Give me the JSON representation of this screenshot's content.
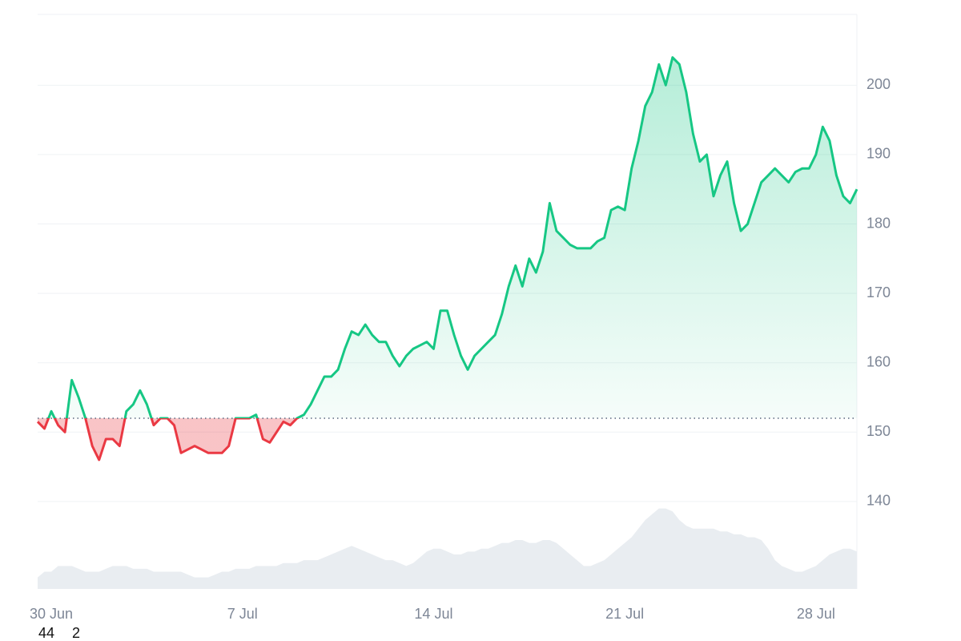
{
  "chart_data": {
    "type": "line",
    "categories": [
      null,
      null,
      "30 Jun",
      null,
      null,
      null,
      null,
      null,
      null,
      null,
      null,
      null,
      null,
      null,
      null,
      null,
      null,
      null,
      null,
      null,
      null,
      null,
      null,
      null,
      null,
      null,
      null,
      null,
      null,
      null,
      "7 Jul",
      null,
      null,
      null,
      null,
      null,
      null,
      null,
      null,
      null,
      null,
      null,
      null,
      null,
      null,
      null,
      null,
      null,
      null,
      null,
      null,
      null,
      null,
      null,
      null,
      null,
      null,
      null,
      "14 Jul",
      null,
      null,
      null,
      null,
      null,
      null,
      null,
      null,
      null,
      null,
      null,
      null,
      null,
      null,
      null,
      null,
      null,
      null,
      null,
      null,
      null,
      null,
      null,
      null,
      null,
      null,
      null,
      "21 Jul",
      null,
      null,
      null,
      null,
      null,
      null,
      null,
      null,
      null,
      null,
      null,
      null,
      null,
      null,
      null,
      null,
      null,
      null,
      null,
      null,
      null,
      null,
      null,
      null,
      null,
      null,
      null,
      "28 Jul",
      null,
      null,
      null,
      null,
      null,
      null
    ],
    "series": [
      {
        "color": "#16c784",
        "down_color": "#ea3943",
        "values": [
          151.5,
          150.5,
          153,
          151,
          150,
          157.5,
          155,
          152,
          148,
          146,
          149,
          149,
          148,
          153,
          154,
          156,
          154,
          151,
          152,
          152,
          151,
          147,
          147.5,
          148,
          147.5,
          147,
          147,
          147,
          148,
          152,
          152,
          152,
          152.5,
          149,
          148.5,
          150,
          151.5,
          151,
          152,
          152.5,
          154,
          156,
          158,
          158,
          159,
          162,
          164.5,
          164,
          165.5,
          164,
          163,
          163,
          161,
          159.5,
          161,
          162,
          162.5,
          163,
          162,
          167.5,
          167.5,
          164,
          161,
          159,
          161,
          162,
          163,
          164,
          167,
          171,
          174,
          171,
          175,
          173,
          176,
          183,
          179,
          178,
          177,
          176.5,
          176.5,
          176.5,
          177.5,
          178,
          182,
          182.5,
          182,
          188,
          192,
          197,
          199,
          203,
          200,
          204,
          203,
          199,
          193,
          189,
          190,
          184,
          187,
          189,
          183,
          179,
          180,
          183,
          186,
          187,
          188,
          187,
          186,
          187.5,
          188,
          188,
          190,
          194,
          192,
          187,
          184,
          183,
          185
        ]
      },
      {
        "type": "area",
        "axis": "y2",
        "color": "#e9edf1",
        "values": [
          2,
          3,
          3,
          4,
          4,
          4,
          3.5,
          3,
          3,
          3,
          3.5,
          4,
          4,
          4,
          3.5,
          3.5,
          3.5,
          3,
          3,
          3,
          3,
          3,
          2.5,
          2,
          2,
          2,
          2.5,
          3,
          3,
          3.5,
          3.5,
          3.5,
          4,
          4,
          4,
          4,
          4.5,
          4.5,
          4.5,
          5,
          5,
          5,
          5.5,
          6,
          6.5,
          7,
          7.5,
          7,
          6.5,
          6,
          5.5,
          5,
          5,
          4.5,
          4,
          4.5,
          5.5,
          6.5,
          7,
          7,
          6.5,
          6,
          6,
          6.5,
          6.5,
          7,
          7,
          7.5,
          8,
          8,
          8.5,
          8.5,
          8,
          8,
          8.5,
          8.5,
          8,
          7,
          6,
          5,
          4,
          4,
          4.5,
          5,
          6,
          7,
          8,
          9,
          10.5,
          12,
          13,
          14,
          14,
          13.5,
          12,
          11,
          10.5,
          10.5,
          10.5,
          10.5,
          10,
          10,
          9.5,
          9.5,
          9,
          9,
          8.5,
          7,
          5,
          4,
          3.5,
          3,
          3,
          3.5,
          4,
          5,
          6,
          6.5,
          7,
          7,
          6.5
        ]
      }
    ],
    "baseline": 152,
    "ylim": [
      127.4,
      210.2
    ],
    "yticks": [
      140,
      150,
      160,
      170,
      180,
      190,
      200
    ],
    "y2lim": [
      0,
      100
    ],
    "grid": true,
    "annotations": [
      "44",
      "2"
    ]
  }
}
